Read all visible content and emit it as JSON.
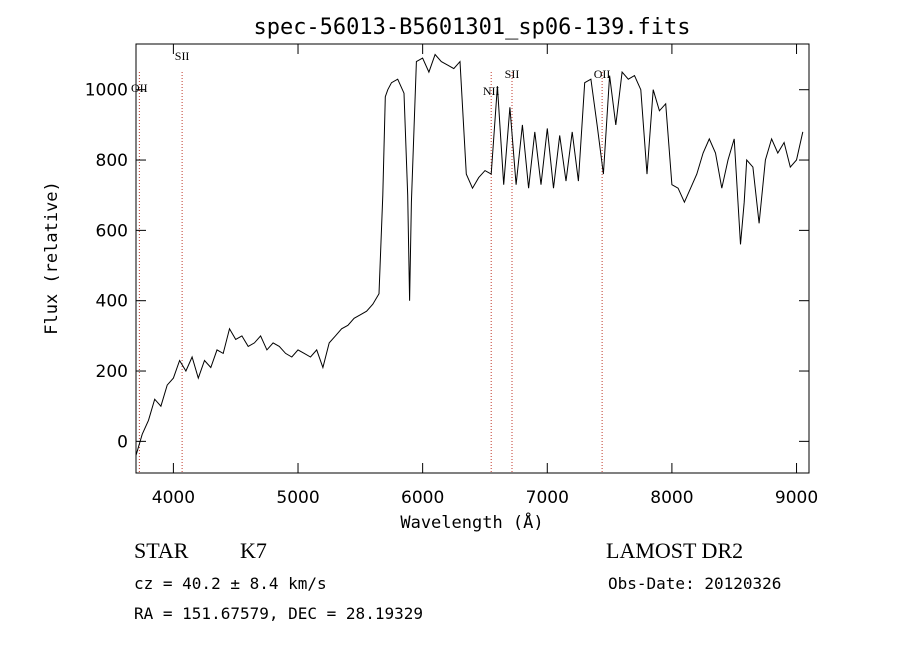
{
  "chart_data": {
    "type": "line",
    "title": "spec-56013-B5601301_sp06-139.fits",
    "xlabel": "Wavelength (Å)",
    "ylabel": "Flux (relative)",
    "xlim": [
      3700,
      9100
    ],
    "ylim": [
      -90,
      1130
    ],
    "xticks": [
      4000,
      5000,
      6000,
      7000,
      8000,
      9000
    ],
    "yticks": [
      0,
      200,
      400,
      600,
      800,
      1000
    ],
    "grid": false,
    "series": [
      {
        "name": "spectrum",
        "color": "#000000",
        "x": [
          3700,
          3750,
          3800,
          3850,
          3900,
          3950,
          4000,
          4050,
          4100,
          4150,
          4200,
          4250,
          4300,
          4350,
          4400,
          4450,
          4500,
          4550,
          4600,
          4650,
          4700,
          4750,
          4800,
          4850,
          4900,
          4950,
          5000,
          5050,
          5100,
          5150,
          5200,
          5250,
          5300,
          5350,
          5400,
          5450,
          5500,
          5550,
          5600,
          5650,
          5680,
          5700,
          5720,
          5750,
          5800,
          5850,
          5880,
          5895,
          5910,
          5950,
          6000,
          6050,
          6100,
          6150,
          6200,
          6250,
          6300,
          6350,
          6400,
          6450,
          6500,
          6550,
          6600,
          6650,
          6700,
          6750,
          6800,
          6850,
          6900,
          6950,
          7000,
          7050,
          7100,
          7150,
          7200,
          7250,
          7300,
          7350,
          7400,
          7450,
          7500,
          7550,
          7600,
          7650,
          7700,
          7750,
          7800,
          7850,
          7900,
          7950,
          8000,
          8050,
          8100,
          8150,
          8200,
          8250,
          8300,
          8350,
          8400,
          8450,
          8500,
          8550,
          8580,
          8600,
          8650,
          8700,
          8750,
          8800,
          8850,
          8900,
          8950,
          9000,
          9050
        ],
        "values": [
          -40,
          20,
          60,
          120,
          100,
          160,
          180,
          230,
          200,
          240,
          180,
          230,
          210,
          260,
          250,
          320,
          290,
          300,
          270,
          280,
          300,
          260,
          280,
          270,
          250,
          240,
          260,
          250,
          240,
          260,
          210,
          280,
          300,
          320,
          330,
          350,
          360,
          370,
          390,
          420,
          700,
          980,
          1000,
          1020,
          1030,
          990,
          700,
          400,
          680,
          1080,
          1090,
          1050,
          1100,
          1080,
          1070,
          1060,
          1080,
          760,
          720,
          750,
          770,
          760,
          1010,
          730,
          950,
          730,
          900,
          720,
          880,
          730,
          890,
          720,
          870,
          740,
          880,
          740,
          1020,
          1030,
          900,
          760,
          1040,
          900,
          1050,
          1030,
          1040,
          1000,
          760,
          1000,
          940,
          960,
          730,
          720,
          680,
          720,
          760,
          820,
          860,
          820,
          720,
          800,
          860,
          560,
          680,
          800,
          780,
          620,
          800,
          860,
          820,
          850,
          780,
          800,
          880
        ]
      }
    ],
    "emission_lines": [
      {
        "label": "OII",
        "wavelength": 3727
      },
      {
        "label": "SII",
        "wavelength": 4070
      },
      {
        "label": "NII",
        "wavelength": 6550
      },
      {
        "label": "SII",
        "wavelength": 6717
      },
      {
        "label": "OII",
        "wavelength": 7440
      }
    ]
  },
  "info": {
    "object_class": "STAR",
    "subclass": "K7",
    "survey": "LAMOST DR2",
    "cz": "cz = 40.2 ± 8.4 km/s",
    "obs_date": "Obs-Date: 20120326",
    "coords": "RA = 151.67579, DEC =  28.19329"
  },
  "colors": {
    "line_marker": "#c0392b",
    "axis": "#000000"
  }
}
